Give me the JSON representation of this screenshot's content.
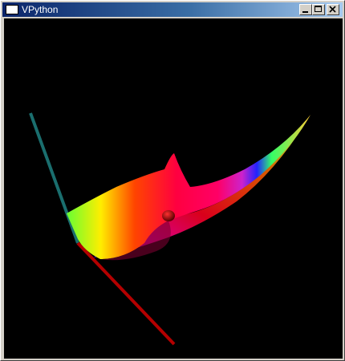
{
  "window": {
    "title": "VPython",
    "controls": {
      "minimize_icon": "minimize-icon",
      "maximize_icon": "maximize-icon",
      "close_icon": "close-icon"
    }
  },
  "scene": {
    "background": "#000000",
    "objects": [
      "teal-axis",
      "red-axis",
      "rainbow-surface",
      "red-sphere"
    ],
    "colors": {
      "teal_axis": "#1a6e6e",
      "red_axis": "#b40000",
      "sphere": "#b00000"
    }
  }
}
